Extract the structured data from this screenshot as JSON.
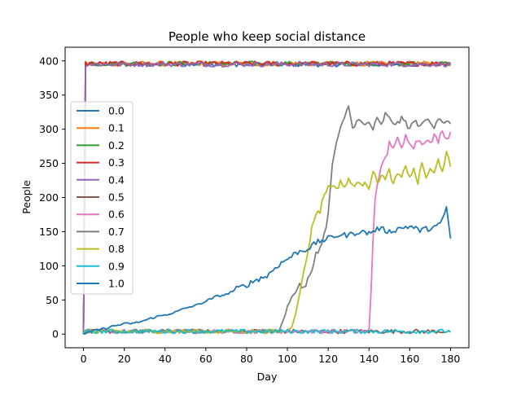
{
  "chart_data": {
    "type": "line",
    "title": "People who keep social distance",
    "xlabel": "Day",
    "ylabel": "People",
    "xlim": [
      -9,
      189
    ],
    "ylim": [
      -20,
      420
    ],
    "xticks": [
      0,
      20,
      40,
      60,
      80,
      100,
      120,
      140,
      160,
      180
    ],
    "yticks": [
      0,
      50,
      100,
      150,
      200,
      250,
      300,
      350,
      400
    ],
    "grid": false,
    "legend_position": "center-left",
    "days": [
      0,
      180
    ],
    "series": [
      {
        "name": "0.0",
        "color": "#1f77b4",
        "level": 395,
        "start": 0,
        "end": 395
      },
      {
        "name": "0.1",
        "color": "#ff7f0e",
        "level": 396,
        "start": 0,
        "end": 393
      },
      {
        "name": "0.2",
        "color": "#2ca02c",
        "level": 396,
        "start": 0,
        "end": 398
      },
      {
        "name": "0.3",
        "color": "#d62728",
        "level": 396,
        "start": 0,
        "end": 396
      },
      {
        "name": "0.4",
        "color": "#9467bd",
        "level": 395,
        "start": 0,
        "end": 394
      },
      {
        "name": "0.5",
        "color": "#8c564b",
        "level": 4,
        "start": 0,
        "end": 3
      },
      {
        "name": "0.6",
        "color": "#e377c2",
        "level": 4,
        "start": 0,
        "end": 296,
        "points": [
          [
            140,
            5
          ],
          [
            141,
            60
          ],
          [
            142,
            140
          ],
          [
            143,
            200
          ],
          [
            145,
            235
          ],
          [
            147,
            250
          ],
          [
            149,
            265
          ],
          [
            150,
            280
          ],
          [
            152,
            275
          ],
          [
            154,
            285
          ],
          [
            156,
            270
          ],
          [
            158,
            290
          ],
          [
            160,
            282
          ],
          [
            162,
            275
          ],
          [
            164,
            285
          ],
          [
            166,
            280
          ],
          [
            168,
            286
          ],
          [
            170,
            278
          ],
          [
            172,
            290
          ],
          [
            174,
            283
          ],
          [
            176,
            300
          ],
          [
            178,
            285
          ],
          [
            180,
            296
          ]
        ]
      },
      {
        "name": "0.7",
        "color": "#7f7f7f",
        "level": 4,
        "start": 0,
        "end": 308,
        "points": [
          [
            96,
            5
          ],
          [
            98,
            20
          ],
          [
            100,
            40
          ],
          [
            102,
            55
          ],
          [
            104,
            60
          ],
          [
            106,
            75
          ],
          [
            108,
            65
          ],
          [
            110,
            80
          ],
          [
            112,
            90
          ],
          [
            114,
            120
          ],
          [
            116,
            125
          ],
          [
            118,
            145
          ],
          [
            120,
            175
          ],
          [
            121,
            210
          ],
          [
            122,
            245
          ],
          [
            123,
            265
          ],
          [
            124,
            280
          ],
          [
            125,
            290
          ],
          [
            126,
            300
          ],
          [
            128,
            315
          ],
          [
            130,
            335
          ],
          [
            132,
            300
          ],
          [
            134,
            315
          ],
          [
            136,
            310
          ],
          [
            138,
            305
          ],
          [
            140,
            310
          ],
          [
            142,
            300
          ],
          [
            144,
            315
          ],
          [
            146,
            305
          ],
          [
            148,
            322
          ],
          [
            150,
            315
          ],
          [
            152,
            310
          ],
          [
            154,
            308
          ],
          [
            156,
            315
          ],
          [
            158,
            310
          ],
          [
            160,
            300
          ],
          [
            162,
            312
          ],
          [
            164,
            308
          ],
          [
            166,
            305
          ],
          [
            168,
            315
          ],
          [
            170,
            310
          ],
          [
            172,
            305
          ],
          [
            174,
            318
          ],
          [
            176,
            312
          ],
          [
            178,
            310
          ],
          [
            180,
            308
          ]
        ]
      },
      {
        "name": "0.8",
        "color": "#bcbd22",
        "level": 4,
        "start": 0,
        "end": 245,
        "points": [
          [
            100,
            5
          ],
          [
            102,
            10
          ],
          [
            104,
            30
          ],
          [
            106,
            60
          ],
          [
            108,
            90
          ],
          [
            110,
            120
          ],
          [
            112,
            155
          ],
          [
            114,
            178
          ],
          [
            116,
            180
          ],
          [
            118,
            205
          ],
          [
            120,
            215
          ],
          [
            122,
            220
          ],
          [
            124,
            210
          ],
          [
            126,
            225
          ],
          [
            128,
            215
          ],
          [
            130,
            225
          ],
          [
            132,
            218
          ],
          [
            134,
            222
          ],
          [
            136,
            216
          ],
          [
            138,
            225
          ],
          [
            140,
            215
          ],
          [
            142,
            240
          ],
          [
            144,
            220
          ],
          [
            146,
            235
          ],
          [
            148,
            225
          ],
          [
            150,
            240
          ],
          [
            152,
            218
          ],
          [
            154,
            235
          ],
          [
            156,
            228
          ],
          [
            158,
            245
          ],
          [
            160,
            232
          ],
          [
            162,
            240
          ],
          [
            164,
            222
          ],
          [
            166,
            250
          ],
          [
            168,
            230
          ],
          [
            170,
            240
          ],
          [
            172,
            235
          ],
          [
            174,
            255
          ],
          [
            176,
            240
          ],
          [
            178,
            265
          ],
          [
            180,
            245
          ]
        ]
      },
      {
        "name": "0.9",
        "color": "#17becf",
        "level": 4,
        "start": 0,
        "end": 3
      },
      {
        "name": "1.0",
        "color": "#1f77b4",
        "level": 0,
        "start": 0,
        "end": 140,
        "points": [
          [
            0,
            0
          ],
          [
            5,
            5
          ],
          [
            10,
            8
          ],
          [
            15,
            12
          ],
          [
            20,
            15
          ],
          [
            25,
            16
          ],
          [
            30,
            20
          ],
          [
            35,
            25
          ],
          [
            40,
            28
          ],
          [
            45,
            32
          ],
          [
            50,
            38
          ],
          [
            55,
            42
          ],
          [
            60,
            48
          ],
          [
            65,
            55
          ],
          [
            70,
            58
          ],
          [
            75,
            66
          ],
          [
            80,
            72
          ],
          [
            85,
            80
          ],
          [
            90,
            85
          ],
          [
            95,
            100
          ],
          [
            100,
            110
          ],
          [
            105,
            120
          ],
          [
            110,
            125
          ],
          [
            115,
            135
          ],
          [
            120,
            140
          ],
          [
            125,
            145
          ],
          [
            130,
            145
          ],
          [
            135,
            150
          ],
          [
            140,
            148
          ],
          [
            145,
            155
          ],
          [
            150,
            150
          ],
          [
            155,
            155
          ],
          [
            160,
            158
          ],
          [
            165,
            152
          ],
          [
            170,
            155
          ],
          [
            175,
            160
          ],
          [
            178,
            185
          ],
          [
            180,
            140
          ]
        ]
      }
    ]
  }
}
